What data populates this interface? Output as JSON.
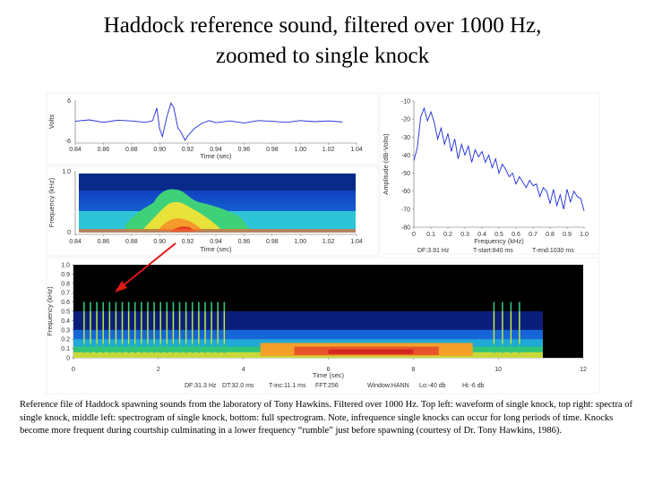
{
  "title": {
    "line1": "Haddock reference sound, filtered over 1000 Hz,",
    "line2": "zoomed to single knock"
  },
  "colors": {
    "waveform": "#1a2bd6",
    "arrow": "#e01818",
    "spectro_bg": "#000000"
  },
  "chart_data": [
    {
      "type": "line",
      "name": "waveform",
      "xlabel": "Time (sec)",
      "ylabel": "Volts",
      "xlim": [
        0.84,
        1.04
      ],
      "ylim": [
        -6,
        6
      ],
      "xticks": [
        "0.84",
        "0.86",
        "0.88",
        "0.90",
        "0.92",
        "0.94",
        "0.96",
        "0.98",
        "1.00",
        "1.02",
        "1.04"
      ],
      "yticks": [
        "6",
        "-6"
      ],
      "x": [
        0.84,
        0.85,
        0.86,
        0.87,
        0.88,
        0.89,
        0.895,
        0.898,
        0.9,
        0.902,
        0.905,
        0.908,
        0.91,
        0.913,
        0.915,
        0.918,
        0.92,
        0.925,
        0.93,
        0.935,
        0.94,
        0.95,
        0.96,
        0.97,
        0.98,
        0.99,
        1.0,
        1.01,
        1.02,
        1.03
      ],
      "y": [
        0.1,
        0.5,
        -0.2,
        0.4,
        0.2,
        -0.2,
        0.3,
        3.8,
        -2.0,
        -4.2,
        1.2,
        5.2,
        4.0,
        -1.8,
        -2.8,
        -5.2,
        -4.0,
        -1.8,
        -0.5,
        0.3,
        -0.3,
        0.2,
        -0.4,
        0.3,
        0.1,
        -0.2,
        0.3,
        0.0,
        0.2,
        -0.1
      ]
    },
    {
      "type": "line",
      "name": "spectrum",
      "xlabel": "Frequency (kHz)",
      "ylabel": "Amplitude (dB-Volts)",
      "xlim": [
        0,
        1.0
      ],
      "ylim": [
        -80,
        -10
      ],
      "xticks": [
        "0",
        "0.1",
        "0.2",
        "0.3",
        "0.4",
        "0.5",
        "0.6",
        "0.7",
        "0.8",
        "0.9",
        "1.0"
      ],
      "yticks": [
        "-10",
        "-20",
        "-30",
        "-40",
        "-50",
        "-60",
        "-70",
        "-80"
      ],
      "x": [
        0.0,
        0.02,
        0.04,
        0.06,
        0.08,
        0.1,
        0.12,
        0.14,
        0.16,
        0.18,
        0.2,
        0.22,
        0.24,
        0.26,
        0.28,
        0.3,
        0.32,
        0.34,
        0.36,
        0.38,
        0.4,
        0.42,
        0.44,
        0.46,
        0.48,
        0.5,
        0.52,
        0.54,
        0.56,
        0.58,
        0.6,
        0.62,
        0.64,
        0.66,
        0.68,
        0.7,
        0.72,
        0.74,
        0.76,
        0.78,
        0.8,
        0.82,
        0.84,
        0.86,
        0.88,
        0.9,
        0.92,
        0.94,
        0.96,
        0.98,
        1.0
      ],
      "y": [
        -43,
        -36,
        -19,
        -14,
        -21,
        -16,
        -22,
        -31,
        -25,
        -34,
        -28,
        -38,
        -31,
        -42,
        -34,
        -40,
        -35,
        -44,
        -37,
        -41,
        -38,
        -44,
        -40,
        -47,
        -42,
        -50,
        -45,
        -48,
        -52,
        -50,
        -56,
        -52,
        -55,
        -58,
        -54,
        -57,
        -56,
        -63,
        -58,
        -60,
        -67,
        -59,
        -68,
        -62,
        -70,
        -59,
        -66,
        -60,
        -63,
        -64,
        -71
      ],
      "annotation": [
        "DF:3.91 Hz",
        "T-start:840 ms",
        "T-end:1030 ms"
      ]
    },
    {
      "type": "heatmap",
      "name": "spectrogram_zoom",
      "xlabel": "Time (sec)",
      "ylabel": "Frequency (kHz)",
      "xlim": [
        0.84,
        1.04
      ],
      "ylim": [
        0,
        1.0
      ],
      "xticks": [
        "0.84",
        "0.86",
        "0.88",
        "0.90",
        "0.92",
        "0.94",
        "0.96",
        "0.98",
        "1.00",
        "1.02",
        "1.04"
      ],
      "yticks": [
        "0",
        "1.0"
      ]
    },
    {
      "type": "heatmap",
      "name": "spectrogram_full",
      "xlabel": "Time (sec)",
      "ylabel": "Frequency (kHz)",
      "xlim": [
        0,
        12
      ],
      "ylim": [
        0,
        1.0
      ],
      "xticks": [
        "0",
        "2",
        "4",
        "6",
        "8",
        "10",
        "12"
      ],
      "yticks": [
        "0",
        "0.1",
        "0.2",
        "0.3",
        "0.4",
        "0.5",
        "0.6",
        "0.7",
        "0.8",
        "0.9",
        "1.0"
      ],
      "knock_times": [
        0.25,
        0.4,
        0.55,
        0.7,
        0.85,
        1.0,
        1.15,
        1.3,
        1.45,
        1.6,
        1.75,
        1.9,
        2.05,
        2.2,
        2.35,
        2.5,
        2.65,
        2.8,
        2.95,
        3.1,
        3.25,
        3.4,
        3.55,
        9.9,
        10.1,
        10.3,
        10.5
      ],
      "footer": [
        "DF:31.3 Hz",
        "DT:32.0 ms",
        "T-inc:11.1 ms",
        "FFT:256",
        "Window:HANN",
        "Lo:-40 db",
        "Hi:-6 db"
      ]
    }
  ],
  "caption": "Reference file of Haddock spawning sounds from the laboratory of Tony Hawkins.  Filtered over 1000 Hz. Top left: waveform of single knock, top right: spectra of single knock, middle left:  spectrogram of single knock, bottom: full spectrogram.  Note, infrequence single knocks can occur for long periods of time.  Knocks become more frequent during courtship culminating in a lower frequency “rumble” just before spawning (courtesy of Dr. Tony Hawkins, 1986)."
}
